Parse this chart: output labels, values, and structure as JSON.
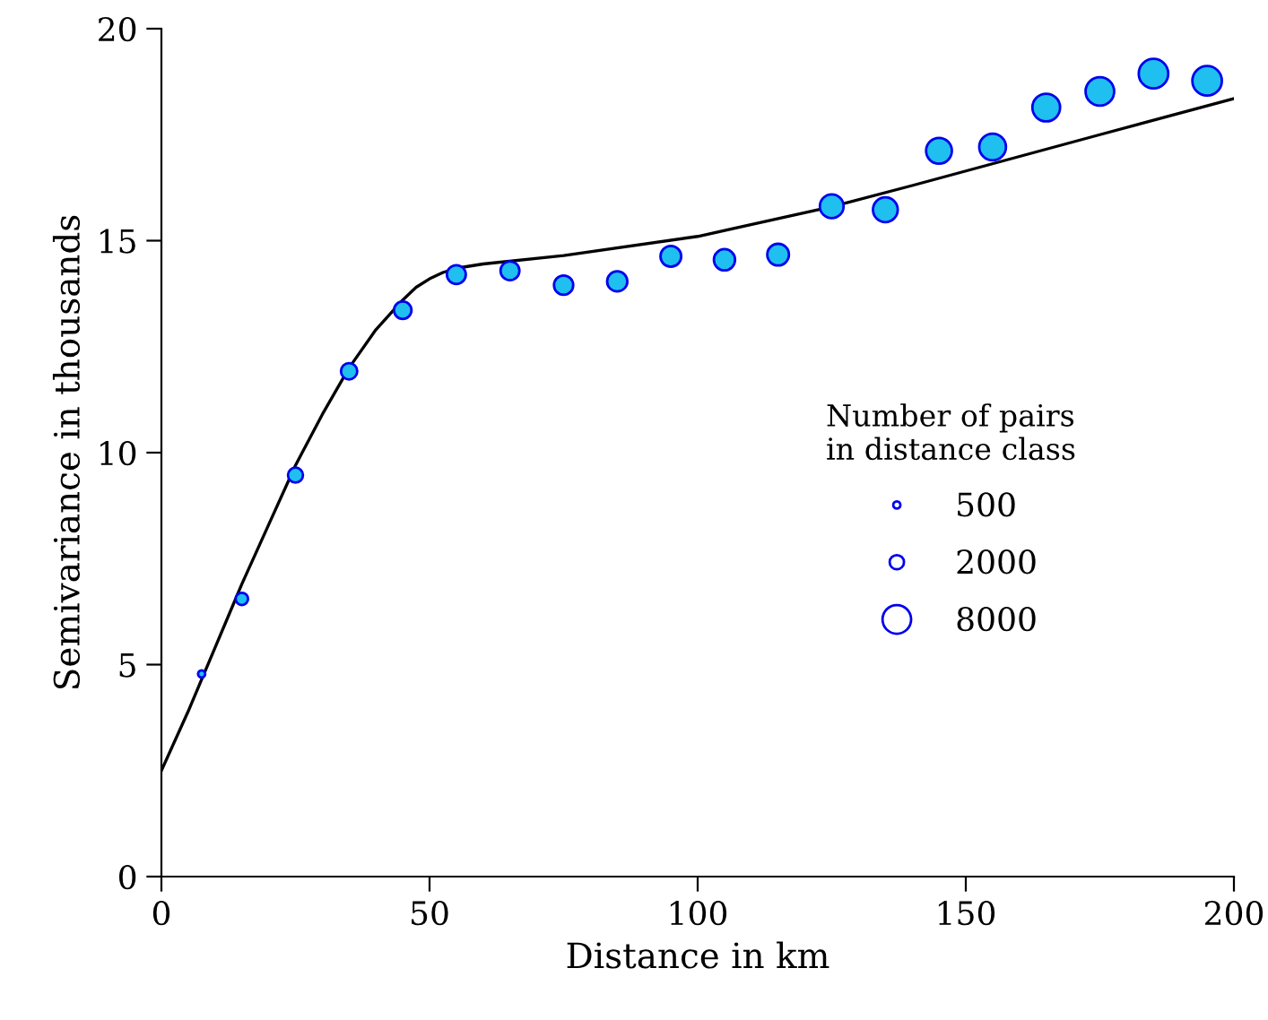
{
  "chart_data": {
    "type": "bubble",
    "xlabel": "Distance in km",
    "ylabel": "Semivariance in thousands",
    "legend_title": "Number of pairs\nin distance class",
    "xlim": [
      0,
      200
    ],
    "ylim": [
      0,
      20
    ],
    "xticks": [
      0,
      50,
      100,
      150,
      200
    ],
    "yticks": [
      0,
      5,
      10,
      15,
      20
    ],
    "grid": false,
    "size_legend": [
      500,
      2000,
      8000
    ],
    "x": [
      7.5,
      15,
      25,
      35,
      45,
      55,
      65,
      75,
      85,
      95,
      105,
      115,
      125,
      135,
      145,
      155,
      165,
      175,
      185,
      195
    ],
    "series": [
      {
        "marker": "circle",
        "color": "#1fbff0",
        "values": [
          4.78,
          6.55,
          9.47,
          11.92,
          13.36,
          14.2,
          14.29,
          13.95,
          14.04,
          14.63,
          14.55,
          14.67,
          15.81,
          15.73,
          17.12,
          17.21,
          18.14,
          18.52,
          18.94,
          18.77
        ],
        "sizes": [
          500,
          1500,
          2200,
          2600,
          3000,
          3500,
          3500,
          3600,
          4000,
          4200,
          4400,
          4600,
          5500,
          6000,
          6500,
          7000,
          7500,
          8000,
          8500,
          8500
        ]
      },
      {
        "type": "line",
        "color": "#000000",
        "x": [
          0,
          5,
          10,
          15,
          20,
          25,
          30,
          35,
          40,
          45,
          47.5,
          50,
          52.5,
          55,
          60,
          75,
          100,
          125,
          140,
          175,
          200
        ],
        "values": [
          2.5,
          3.9,
          5.4,
          6.9,
          8.3,
          9.7,
          10.9,
          12.0,
          12.9,
          13.6,
          13.9,
          14.1,
          14.25,
          14.35,
          14.45,
          14.65,
          15.1,
          15.8,
          16.3,
          17.5,
          18.35
        ]
      }
    ]
  }
}
